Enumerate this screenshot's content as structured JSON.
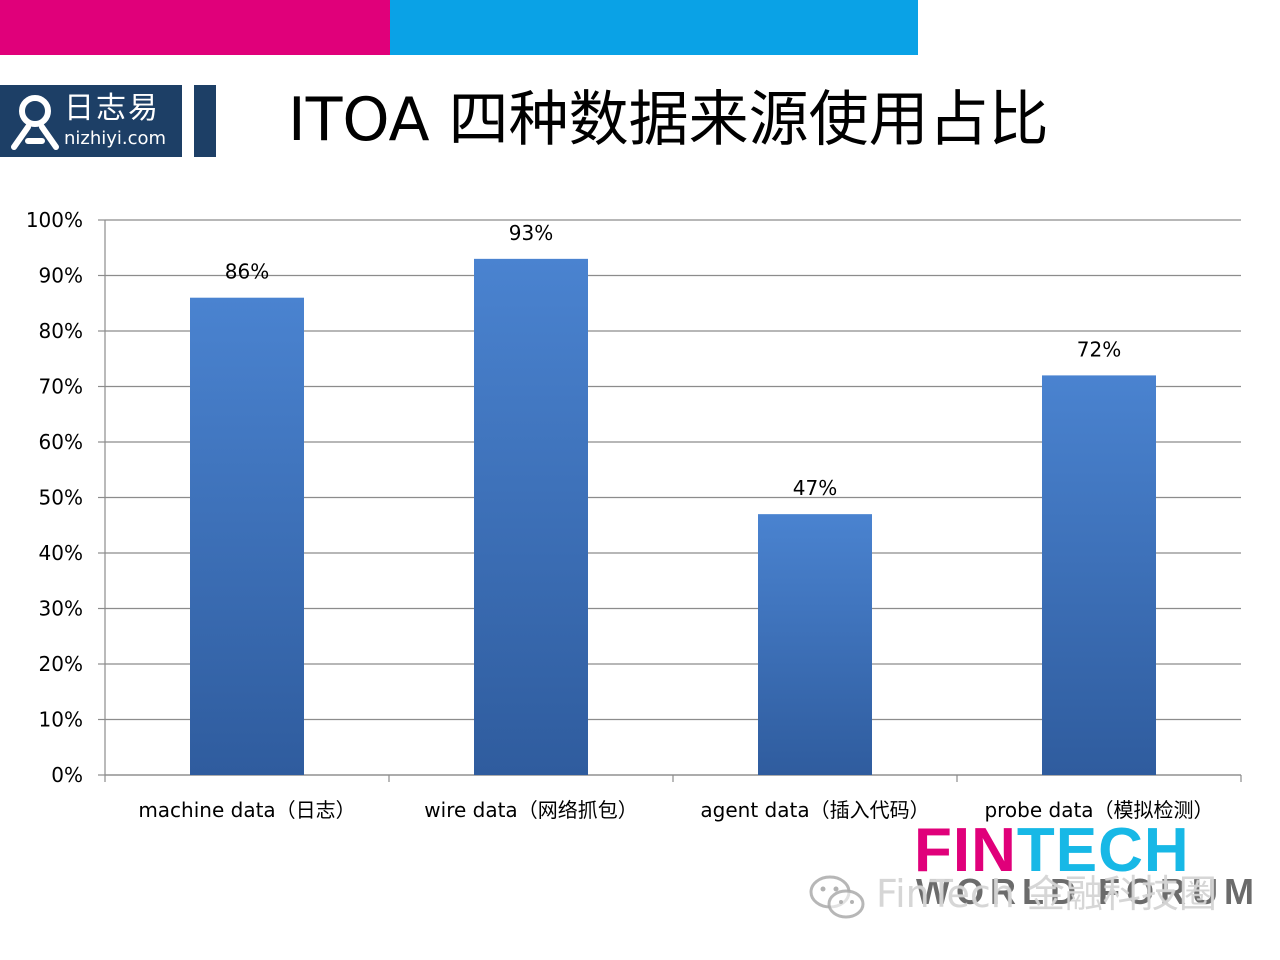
{
  "colors": {
    "top_pink": "#e0007a",
    "top_blue": "#0aa2e6",
    "bar_fill_top": "#4a83d0",
    "bar_fill_bottom": "#2f5c9e",
    "fintech_pink": "#e0007a",
    "fintech_cyan": "#17b8e6",
    "forum_color": "#6b6b6b",
    "gridline": "#8c8c8c"
  },
  "logo": {
    "cn": "日志易",
    "en": "nizhiyi.com",
    "icon": "nizhiyi-logo-icon"
  },
  "title": "ITOA 四种数据来源使用占比",
  "chart_data": {
    "type": "bar",
    "title": "ITOA 四种数据来源使用占比",
    "categories": [
      "machine data（日志）",
      "wire data（网络抓包）",
      "agent data（插入代码）",
      "probe data（模拟检测）"
    ],
    "values": [
      86,
      93,
      47,
      72
    ],
    "data_labels": [
      "86%",
      "93%",
      "47%",
      "72%"
    ],
    "ylim": [
      0,
      100
    ],
    "yticks": [
      "0%",
      "10%",
      "20%",
      "30%",
      "40%",
      "50%",
      "60%",
      "70%",
      "80%",
      "90%",
      "100%"
    ],
    "xlabel": "",
    "ylabel": "",
    "grid": true,
    "legend": "none"
  },
  "branding": {
    "fintech_pink_part": "FIN",
    "fintech_cyan_part": "TECH",
    "forum": "WORLD FORUM"
  },
  "watermark": {
    "text": "FinTech 金融科技圈",
    "icon": "wechat-icon"
  }
}
